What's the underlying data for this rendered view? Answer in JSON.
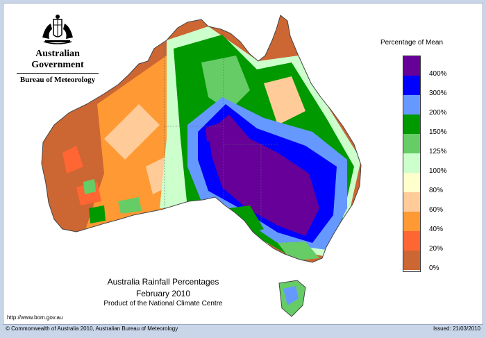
{
  "header": {
    "government": "Australian Government",
    "bureau": "Bureau of Meteorology"
  },
  "map": {
    "title": "Australia Rainfall Percentages",
    "period": "February 2010",
    "product": "Product of the National Climate Centre",
    "url": "http://www.bom.gov.au"
  },
  "legend": {
    "title": "Percentage of Mean",
    "bands": [
      {
        "label": "400%",
        "color": "#660099"
      },
      {
        "label": "300%",
        "color": "#0000ff"
      },
      {
        "label": "200%",
        "color": "#6699ff"
      },
      {
        "label": "150%",
        "color": "#009900"
      },
      {
        "label": "125%",
        "color": "#66cc66"
      },
      {
        "label": "100%",
        "color": "#ccffcc"
      },
      {
        "label": "80%",
        "color": "#ffffcc"
      },
      {
        "label": "60%",
        "color": "#ffcc99"
      },
      {
        "label": "40%",
        "color": "#ff9933"
      },
      {
        "label": "20%",
        "color": "#ff6633"
      },
      {
        "label": "0%",
        "color": "#cc6633"
      }
    ]
  },
  "footer": {
    "copyright": "© Commonwealth of Australia 2010, Australian Bureau of Meteorology",
    "issued": "Issued: 21/03/2010"
  }
}
